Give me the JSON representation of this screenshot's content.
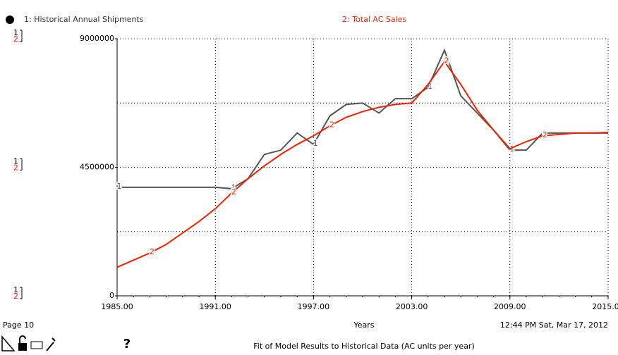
{
  "chart_data": {
    "type": "line",
    "title": "Fit of Model Results to Historical Data (AC units per year)",
    "page": "Page 10",
    "timestamp": "12:44 PM  Sat, Mar 17, 2012",
    "help": "?",
    "x_label": "Years",
    "x": [
      1985,
      1986,
      1987,
      1988,
      1989,
      1990,
      1991,
      1992,
      1993,
      1994,
      1995,
      1996,
      1997,
      1998,
      1999,
      2000,
      2001,
      2002,
      2003,
      2004,
      2005,
      2006,
      2007,
      2008,
      2009,
      2010,
      2011,
      2012,
      2013,
      2014,
      2015
    ],
    "series": [
      {
        "name": "1: Historical Annual Shipments",
        "marker": "1",
        "color": "#555555",
        "values": [
          3800000,
          3800000,
          3800000,
          3800000,
          3800000,
          3800000,
          3800000,
          3750000,
          4100000,
          4950000,
          5100000,
          5700000,
          5300000,
          6300000,
          6700000,
          6750000,
          6400000,
          6900000,
          6900000,
          7300000,
          8600000,
          7000000,
          6400000,
          5800000,
          5100000,
          5100000,
          5700000,
          5700000,
          5700000,
          5700000,
          5700000
        ]
      },
      {
        "name": "2: Total AC Sales",
        "marker": "2",
        "color": "#ee2200",
        "values": [
          1000000,
          1250000,
          1500000,
          1800000,
          2200000,
          2600000,
          3050000,
          3600000,
          4100000,
          4550000,
          4950000,
          5300000,
          5600000,
          5950000,
          6250000,
          6450000,
          6600000,
          6700000,
          6750000,
          7400000,
          8200000,
          7400000,
          6500000,
          5800000,
          5150000,
          5400000,
          5600000,
          5650000,
          5700000,
          5700000,
          5720000
        ]
      }
    ],
    "xlim": [
      1985,
      2015
    ],
    "xticks": [
      {
        "value": 1985,
        "label": "1985.00"
      },
      {
        "value": 1991,
        "label": "1991.00"
      },
      {
        "value": 1997,
        "label": "1997.00"
      },
      {
        "value": 2003,
        "label": "2003.00"
      },
      {
        "value": 2009,
        "label": "2009.00"
      },
      {
        "value": 2015,
        "label": "2015.00"
      }
    ],
    "ylim": [
      0,
      9000000
    ],
    "yticks": [
      0,
      4500000,
      9000000
    ],
    "ygrid": [
      2250000,
      4500000,
      6750000,
      9000000
    ],
    "grid": true
  }
}
